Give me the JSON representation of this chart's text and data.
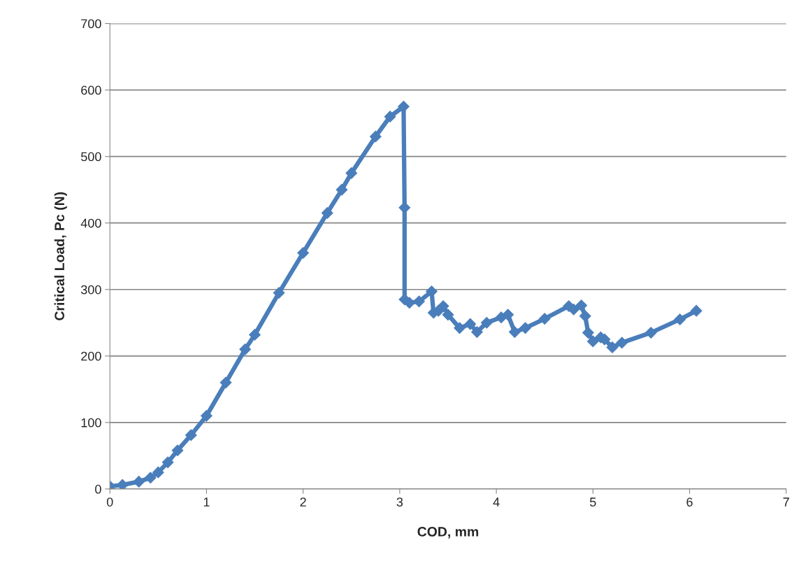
{
  "chart_data": {
    "type": "line",
    "xlabel": "COD, mm",
    "ylabel": "Critical Load, Pc (N)",
    "xlim": [
      0,
      7
    ],
    "xticks": [
      0,
      1,
      2,
      3,
      4,
      5,
      6,
      7
    ],
    "ylim": [
      0,
      700
    ],
    "yticks": [
      0,
      100,
      200,
      300,
      400,
      500,
      600,
      700
    ],
    "grid": "y",
    "marker": "diamond",
    "line_style": "solid",
    "series": [
      {
        "color": "#4a7ebb",
        "x": [
          0,
          0.13,
          0.3,
          0.42,
          0.5,
          0.6,
          0.7,
          0.84,
          1.0,
          1.2,
          1.4,
          1.5,
          1.75,
          2.0,
          2.25,
          2.4,
          2.5,
          2.75,
          2.9,
          3.04,
          3.05,
          3.05,
          3.1,
          3.2,
          3.33,
          3.35,
          3.4,
          3.45,
          3.5,
          3.62,
          3.73,
          3.8,
          3.9,
          4.05,
          4.12,
          4.19,
          4.3,
          4.5,
          4.75,
          4.8,
          4.88,
          4.92,
          4.95,
          5.0,
          5.08,
          5.12,
          5.2,
          5.3,
          5.6,
          5.9,
          6.07
        ],
        "values": [
          4,
          6,
          11,
          17,
          25,
          40,
          58,
          81,
          110,
          160,
          210,
          232,
          295,
          355,
          415,
          450,
          475,
          530,
          560,
          575,
          423,
          285,
          280,
          282,
          297,
          265,
          268,
          275,
          262,
          242,
          248,
          236,
          250,
          258,
          262,
          236,
          242,
          256,
          275,
          270,
          276,
          260,
          235,
          222,
          228,
          225,
          213,
          220,
          235,
          255,
          268
        ]
      }
    ]
  }
}
